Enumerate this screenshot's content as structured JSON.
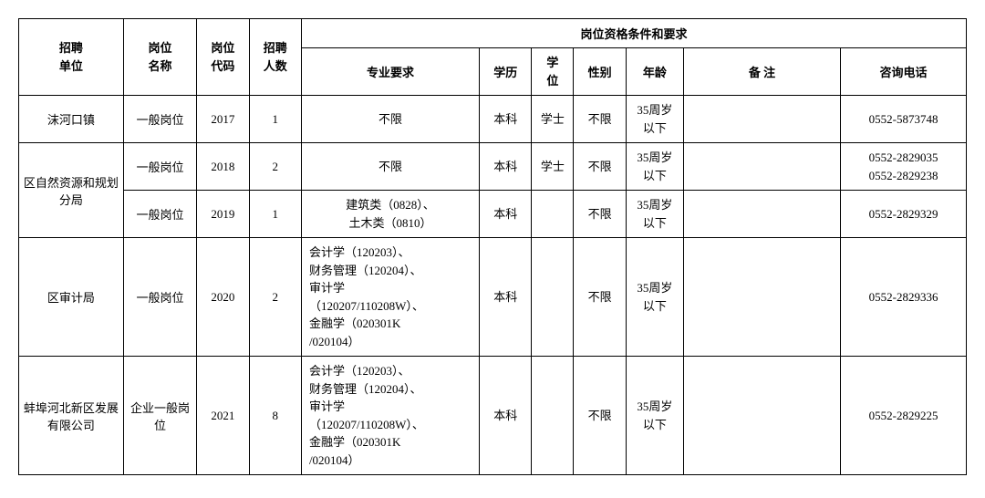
{
  "headers": {
    "unit": "招聘\n单位",
    "pos_name": "岗位\n名称",
    "pos_code": "岗位\n代码",
    "hire_num": "招聘\n人数",
    "requirements": "岗位资格条件和要求",
    "major": "专业要求",
    "edu": "学历",
    "degree": "学\n位",
    "sex": "性别",
    "age": "年龄",
    "note": "备 注",
    "tel": "咨询电话"
  },
  "rows": [
    {
      "unit": "沫河口镇",
      "pos_name": "一般岗位",
      "code": "2017",
      "num": "1",
      "major": "不限",
      "major_align": "center",
      "edu": "本科",
      "degree": "学士",
      "sex": "不限",
      "age": "35周岁\n以下",
      "note": "",
      "tel": "0552-5873748",
      "unit_rowspan": 1
    },
    {
      "unit": "区自然资源和规划分局",
      "pos_name": "一般岗位",
      "code": "2018",
      "num": "2",
      "major": "不限",
      "major_align": "center",
      "edu": "本科",
      "degree": "学士",
      "sex": "不限",
      "age": "35周岁\n以下",
      "note": "",
      "tel": "0552-2829035\n0552-2829238",
      "unit_rowspan": 2
    },
    {
      "unit": null,
      "pos_name": "一般岗位",
      "code": "2019",
      "num": "1",
      "major": "建筑类（0828）、\n土木类（0810）",
      "major_align": "center",
      "edu": "本科",
      "degree": "",
      "sex": "不限",
      "age": "35周岁\n以下",
      "note": "",
      "tel": "0552-2829329"
    },
    {
      "unit": "区审计局",
      "pos_name": "一般岗位",
      "code": "2020",
      "num": "2",
      "major": "会计学（120203）、\n财务管理（120204）、\n审计学\n（120207/110208W）、\n金融学（020301K\n/020104）",
      "major_align": "left",
      "edu": "本科",
      "degree": "",
      "sex": "不限",
      "age": "35周岁\n以下",
      "note": "",
      "tel": "0552-2829336",
      "unit_rowspan": 1
    },
    {
      "unit": "蚌埠河北新区发展有限公司",
      "pos_name": "企业一般岗位",
      "code": "2021",
      "num": "8",
      "major": "会计学（120203）、\n财务管理（120204）、\n审计学\n（120207/110208W）、\n金融学（020301K\n/020104）",
      "major_align": "left",
      "edu": "本科",
      "degree": "",
      "sex": "不限",
      "age": "35周岁\n以下",
      "note": "",
      "tel": "0552-2829225",
      "unit_rowspan": 1
    }
  ],
  "style": {
    "border_color": "#000000",
    "bg": "#ffffff",
    "text_color": "#000000",
    "font_size": 13,
    "header_font_weight": "bold"
  }
}
